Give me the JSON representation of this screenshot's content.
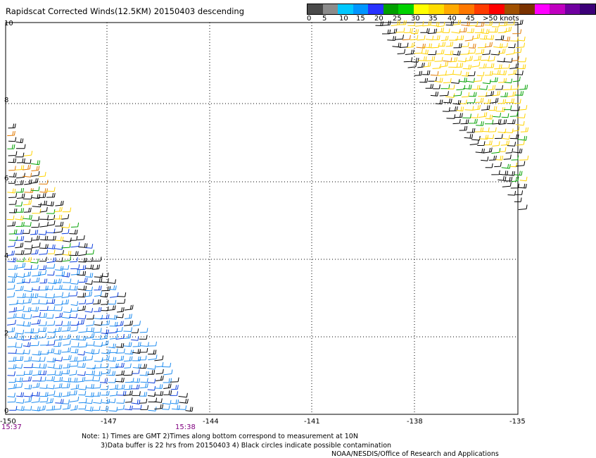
{
  "title": "Rapidscat Corrected Winds(12.5KM) 20150403 descending",
  "legend": {
    "labels": [
      "0",
      "5",
      "10",
      "15",
      "20",
      "25",
      "30",
      "35",
      "40",
      "45",
      ">50 knots"
    ],
    "colors": [
      "#4a4a4a",
      "#8c8c8c",
      "#00c8ff",
      "#0096ff",
      "#2832ff",
      "#00a000",
      "#00d200",
      "#ffff00",
      "#ffdc00",
      "#ffaa00",
      "#ff7800",
      "#ff3c00",
      "#ff0000",
      "#a05000",
      "#7a3200",
      "#ff00ff",
      "#c000c0",
      "#7000a0",
      "#3c0078"
    ]
  },
  "map": {
    "x_ticks": [
      "-150",
      "-147",
      "-144",
      "-141",
      "-138",
      "-135"
    ],
    "y_ticks": [
      "0",
      "2",
      "4",
      "6",
      "8",
      "10"
    ],
    "time_start": "15:37",
    "time_end": "15:38",
    "barb_colors": {
      "black": "#000000",
      "light_blue": "#1e8cf0",
      "blue": "#0a3cdc",
      "green": "#00a000",
      "yellow": "#ffd200",
      "orange": "#e07800",
      "red": "#c03c00"
    }
  },
  "notes": {
    "line1": "Note: 1) Times are GMT 2)Times along bottom correspond to measurement at 10N",
    "line2": "3)Data buffer is 22 hrs from 20150403 4) Black circles indicate possible contamination",
    "line3": "NOAA/NESDIS/Office of Research and Applications"
  }
}
